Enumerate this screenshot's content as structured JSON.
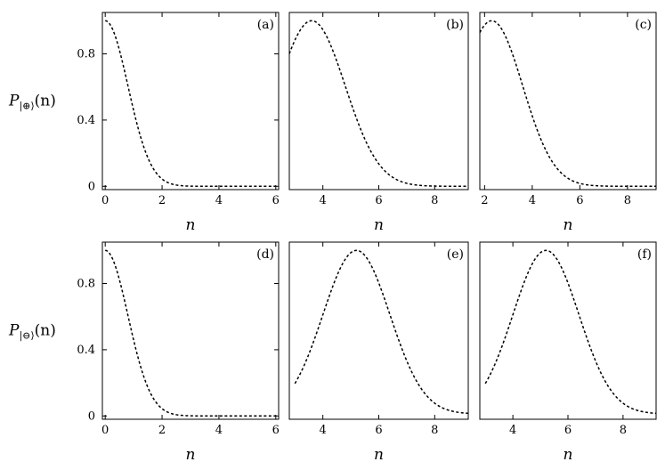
{
  "chart_data": [
    {
      "type": "line",
      "panel_label": "(a)",
      "row": 0,
      "col": 0,
      "xlabel": "n",
      "ylabel": "P_{|⊕⟩}(n)",
      "xlim": [
        -0.1,
        6.1
      ],
      "ylim": [
        -0.02,
        1.05
      ],
      "xticks": [
        0,
        2,
        4,
        6
      ],
      "yticks": [
        0,
        0.4,
        0.8
      ],
      "curve": {
        "model": "gauss",
        "mu": 0.0,
        "sigma": 0.8,
        "range": [
          0,
          6
        ]
      },
      "line_style": "dashed"
    },
    {
      "type": "line",
      "panel_label": "(b)",
      "row": 0,
      "col": 1,
      "xlabel": "n",
      "ylabel": "",
      "xlim": [
        2.8,
        9.2
      ],
      "ylim": [
        -0.02,
        1.05
      ],
      "xticks": [
        4,
        6,
        8
      ],
      "yticks": [],
      "curve": {
        "model": "gauss",
        "mu": 3.6,
        "sigma": 1.2,
        "range": [
          2.8,
          9.2
        ]
      },
      "line_style": "dashed"
    },
    {
      "type": "line",
      "panel_label": "(c)",
      "row": 0,
      "col": 2,
      "xlabel": "n",
      "ylabel": "",
      "xlim": [
        1.8,
        9.2
      ],
      "ylim": [
        -0.02,
        1.05
      ],
      "xticks": [
        2,
        4,
        6,
        8
      ],
      "yticks": [],
      "curve": {
        "model": "gauss",
        "mu": 2.3,
        "sigma": 1.3,
        "range": [
          1.8,
          9.2
        ]
      },
      "line_style": "dashed"
    },
    {
      "type": "line",
      "panel_label": "(d)",
      "row": 1,
      "col": 0,
      "xlabel": "n",
      "ylabel": "P_{|⊖⟩}(n)",
      "xlim": [
        -0.1,
        6.1
      ],
      "ylim": [
        -0.02,
        1.05
      ],
      "xticks": [
        0,
        2,
        4,
        6
      ],
      "yticks": [
        0,
        0.4,
        0.8
      ],
      "curve": {
        "model": "gauss",
        "mu": 0.0,
        "sigma": 0.8,
        "range": [
          0,
          6
        ]
      },
      "line_style": "dashed"
    },
    {
      "type": "line",
      "panel_label": "(e)",
      "row": 1,
      "col": 1,
      "xlabel": "n",
      "ylabel": "",
      "xlim": [
        2.8,
        9.2
      ],
      "ylim": [
        -0.02,
        1.05
      ],
      "xticks": [
        4,
        6,
        8
      ],
      "yticks": [],
      "curve": {
        "model": "gauss",
        "mu": 5.2,
        "sigma": 1.2,
        "range": [
          3.0,
          9.2
        ],
        "baseline": 0.012
      },
      "line_style": "dashed"
    },
    {
      "type": "line",
      "panel_label": "(f)",
      "row": 1,
      "col": 2,
      "xlabel": "n",
      "ylabel": "",
      "xlim": [
        2.8,
        9.2
      ],
      "ylim": [
        -0.02,
        1.05
      ],
      "xticks": [
        4,
        6,
        8
      ],
      "yticks": [],
      "curve": {
        "model": "gauss",
        "mu": 5.2,
        "sigma": 1.2,
        "range": [
          3.0,
          9.2
        ],
        "baseline": 0.012
      },
      "line_style": "dashed"
    }
  ]
}
